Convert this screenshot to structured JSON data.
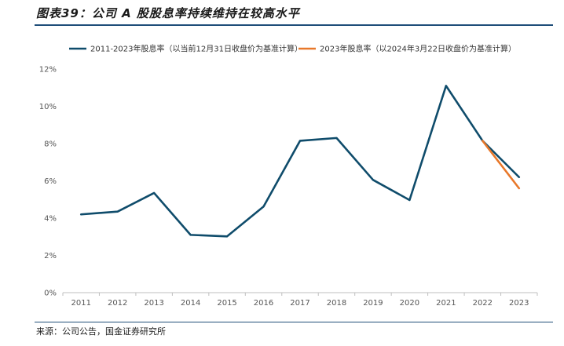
{
  "header": {
    "title": "图表39：公司 A 股股息率持续维持在较高水平"
  },
  "footer": {
    "source": "来源：公司公告，国金证券研究所"
  },
  "colors": {
    "series1": "#0f4c6b",
    "series2": "#e8782a",
    "axis": "#bfbfbf",
    "rule": "#1f4e79"
  },
  "chart_data": {
    "type": "line",
    "title": "",
    "xlabel": "",
    "ylabel": "",
    "categories": [
      "2011",
      "2012",
      "2013",
      "2014",
      "2015",
      "2016",
      "2017",
      "2018",
      "2019",
      "2020",
      "2021",
      "2022",
      "2023"
    ],
    "y_ticks": [
      "0%",
      "2%",
      "4%",
      "6%",
      "8%",
      "10%",
      "12%"
    ],
    "ylim": [
      0,
      12
    ],
    "grid": false,
    "legend_position": "top",
    "series": [
      {
        "name": "2011-2023年股息率（以当前12月31日收盘价为基准计算）",
        "x": [
          "2011",
          "2012",
          "2013",
          "2014",
          "2015",
          "2016",
          "2017",
          "2018",
          "2019",
          "2020",
          "2021",
          "2022",
          "2023"
        ],
        "values": [
          4.2,
          4.35,
          5.35,
          3.1,
          3.02,
          4.62,
          8.15,
          8.3,
          6.05,
          4.97,
          11.1,
          8.15,
          6.2
        ]
      },
      {
        "name": "2023年股息率（以2024年3月22日收盘价为基准计算）",
        "x": [
          "2022",
          "2023"
        ],
        "values": [
          8.15,
          5.6
        ]
      }
    ]
  }
}
